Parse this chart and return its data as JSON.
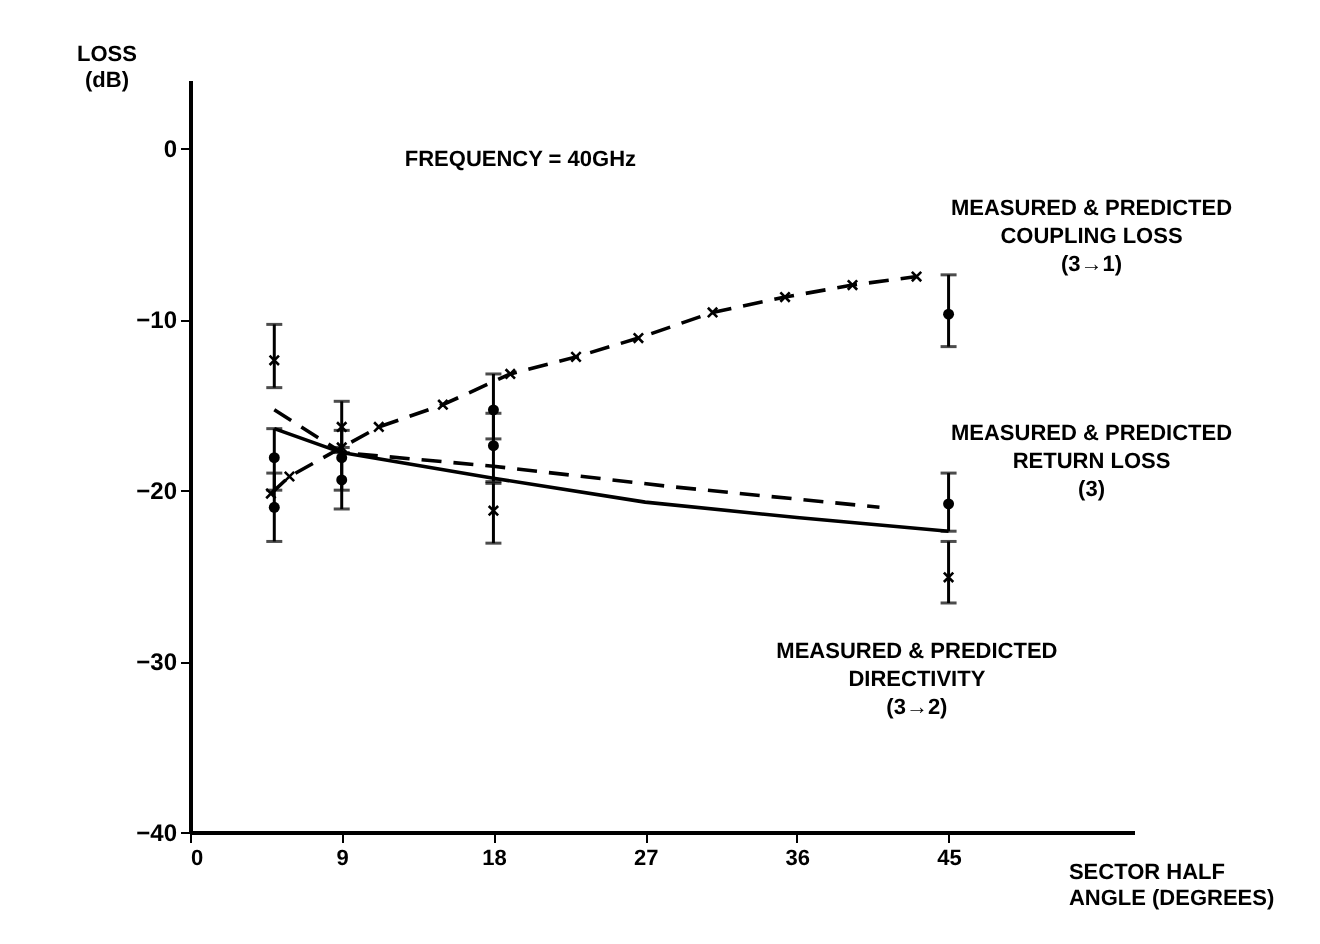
{
  "chart_data": {
    "type": "line",
    "xlabel": "SECTOR HALF\nANGLE (DEGREES)",
    "ylabel": "LOSS\n(dB)",
    "xlim": [
      0,
      56
    ],
    "ylim": [
      -40,
      4
    ],
    "xticks": [
      0,
      9,
      18,
      27,
      36,
      45
    ],
    "yticks": [
      -40,
      -30,
      -20,
      -10,
      0
    ],
    "grid": false,
    "annotations": [
      "FREQUENCY = 40GHz",
      "MEASURED & PREDICTED\nCOUPLING LOSS\n(3→1)",
      "MEASURED & PREDICTED\nRETURN LOSS\n(3)",
      "MEASURED & PREDICTED\nDIRECTIVITY\n(3→2)"
    ],
    "series": [
      {
        "color": "#000000",
        "line_style": "dashed",
        "marker": "cross",
        "x": [
          4.8,
          5.9,
          9,
          11.2,
          15,
          19,
          22.9,
          26.6,
          31,
          35.3,
          39.3,
          43.1
        ],
        "values": [
          -20.2,
          -19.2,
          -17.5,
          -16.3,
          -15,
          -13.2,
          -12.2,
          -11.1,
          -9.6,
          -8.7,
          -8.0,
          -7.5
        ]
      },
      {
        "color": "#000000",
        "line_style": "solid",
        "marker": "none",
        "x": [
          5,
          9,
          18,
          27,
          36,
          45
        ],
        "values": [
          -16.4,
          -17.8,
          -19.3,
          -20.7,
          -21.6,
          -22.4
        ]
      },
      {
        "color": "#000000",
        "line_style": "dashed",
        "marker": "none",
        "x": [
          5,
          9,
          18,
          28.6,
          40.9
        ],
        "values": [
          -15.3,
          -17.8,
          -18.6,
          -19.8,
          -21
        ]
      },
      {
        "type": "scatter",
        "color": "#000000",
        "marker": "circle",
        "x": [
          5,
          9,
          18,
          45
        ],
        "values": [
          -21,
          -19.4,
          -15.3,
          -9.7
        ],
        "errors": [
          [
            -23,
            -19
          ],
          [
            -21.1,
            -17.5
          ],
          [
            -17,
            -13.2
          ],
          [
            -11.6,
            -7.4
          ]
        ]
      },
      {
        "type": "scatter",
        "color": "#000000",
        "marker": "circle",
        "x": [
          5,
          9,
          18,
          45
        ],
        "values": [
          -18.1,
          -18.1,
          -17.4,
          -20.8
        ],
        "errors": [
          [
            -20,
            -16.4
          ],
          [
            -20,
            -16.5
          ],
          [
            -19.5,
            -15.5
          ],
          [
            -22.4,
            -19
          ]
        ]
      },
      {
        "type": "scatter",
        "color": "#000000",
        "marker": "cross",
        "x": [
          5,
          9,
          18,
          45
        ],
        "values": [
          -12.4,
          -16.3,
          -21.2,
          -25.1
        ],
        "errors": [
          [
            -14,
            -10.3
          ],
          [
            -17.8,
            -14.8
          ],
          [
            -23.1,
            -19.6
          ],
          [
            -26.6,
            -23
          ]
        ]
      }
    ]
  }
}
